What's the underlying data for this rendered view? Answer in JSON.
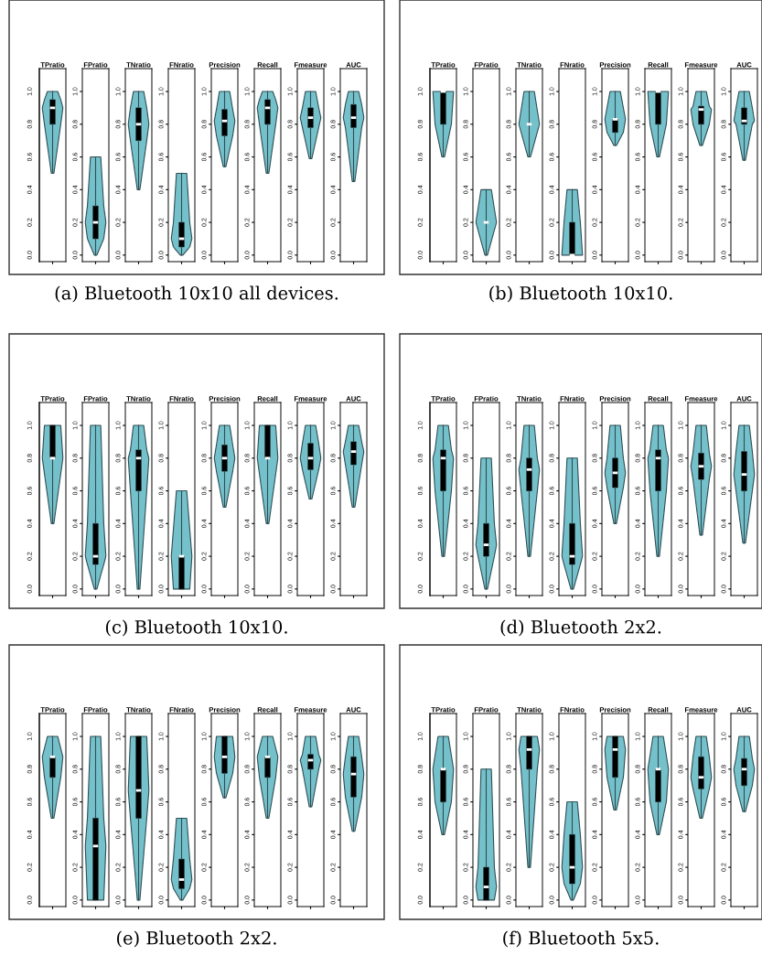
{
  "chart_data": [
    {
      "type": "box",
      "title": "(a) Bluetooth 10x10 all devices.",
      "categories": [
        "TPratio",
        "FPratio",
        "TNratio",
        "FNratio",
        "Precision",
        "Recall",
        "Fmeasure",
        "AUC"
      ],
      "color": "#000000",
      "ylim": [
        -0.04,
        1.14
      ],
      "yticks": [
        {
          "value": 0,
          "label": "0.0"
        },
        {
          "value": 0.2,
          "label": "0.2"
        },
        {
          "value": 0.4,
          "label": "0.4"
        },
        {
          "value": 0.6,
          "label": "0.6"
        },
        {
          "value": 0.8,
          "label": "0.8"
        },
        {
          "value": 1,
          "label": "1.0"
        }
      ],
      "boxes": [
        {
          "low": 0.5,
          "q1": 0.8,
          "median": 0.9,
          "q3": 0.95,
          "high": 1
        },
        {
          "low": 0,
          "q1": 0.1,
          "median": 0.2,
          "q3": 0.3,
          "high": 0.6
        },
        {
          "low": 0.4,
          "q1": 0.7,
          "median": 0.8,
          "q3": 0.9,
          "high": 1
        },
        {
          "low": 0,
          "q1": 0.05,
          "median": 0.1,
          "q3": 0.2,
          "high": 0.5
        },
        {
          "low": 0.54,
          "q1": 0.73,
          "median": 0.82,
          "q3": 0.89,
          "high": 1
        },
        {
          "low": 0.5,
          "q1": 0.8,
          "median": 0.9,
          "q3": 0.95,
          "high": 1
        },
        {
          "low": 0.59,
          "q1": 0.78,
          "median": 0.84,
          "q3": 0.9,
          "high": 1
        },
        {
          "low": 0.45,
          "q1": 0.78,
          "median": 0.84,
          "q3": 0.92,
          "high": 1
        }
      ]
    },
    {
      "type": "box",
      "title": "(b) Bluetooth 10x10.",
      "categories": [
        "TPratio",
        "FPratio",
        "TNratio",
        "FNratio",
        "Precision",
        "Recall",
        "Fmeasure",
        "AUC"
      ],
      "color": "#000000",
      "ylim": [
        -0.04,
        1.14
      ],
      "yticks": [
        {
          "value": 0,
          "label": "0.0"
        },
        {
          "value": 0.2,
          "label": "0.2"
        },
        {
          "value": 0.4,
          "label": "0.4"
        },
        {
          "value": 0.6,
          "label": "0.6"
        },
        {
          "value": 0.8,
          "label": "0.8"
        },
        {
          "value": 1,
          "label": "1.0"
        }
      ],
      "boxes": [
        {
          "low": 0.6,
          "q1": 0.8,
          "median": 1,
          "q3": 1,
          "high": 1
        },
        {
          "low": 0,
          "q1": 0.2,
          "median": 0.2,
          "q3": 0.2,
          "high": 0.4
        },
        {
          "low": 0.6,
          "q1": 0.8,
          "median": 0.8,
          "q3": 0.8,
          "high": 1
        },
        {
          "low": 0,
          "q1": 0,
          "median": 0,
          "q3": 0.2,
          "high": 0.4
        },
        {
          "low": 0.67,
          "q1": 0.75,
          "median": 0.83,
          "q3": 0.83,
          "high": 1
        },
        {
          "low": 0.6,
          "q1": 0.8,
          "median": 1,
          "q3": 1,
          "high": 1
        },
        {
          "low": 0.67,
          "q1": 0.8,
          "median": 0.89,
          "q3": 0.91,
          "high": 1
        },
        {
          "low": 0.58,
          "q1": 0.8,
          "median": 0.82,
          "q3": 0.9,
          "high": 1
        }
      ]
    },
    {
      "type": "box",
      "title": "(c) Bluetooth 10x10.",
      "categories": [
        "TPratio",
        "FPratio",
        "TNratio",
        "FNratio",
        "Precision",
        "Recall",
        "Fmeasure",
        "AUC"
      ],
      "color": "#000000",
      "ylim": [
        -0.04,
        1.14
      ],
      "yticks": [
        {
          "value": 0,
          "label": "0.0"
        },
        {
          "value": 0.2,
          "label": "0.2"
        },
        {
          "value": 0.4,
          "label": "0.4"
        },
        {
          "value": 0.6,
          "label": "0.6"
        },
        {
          "value": 0.8,
          "label": "0.8"
        },
        {
          "value": 1,
          "label": "1.0"
        }
      ],
      "boxes": [
        {
          "low": 0.4,
          "q1": 0.8,
          "median": 0.8,
          "q3": 1,
          "high": 1
        },
        {
          "low": 0,
          "q1": 0.15,
          "median": 0.2,
          "q3": 0.4,
          "high": 1
        },
        {
          "low": 0,
          "q1": 0.6,
          "median": 0.8,
          "q3": 0.85,
          "high": 1
        },
        {
          "low": 0,
          "q1": 0,
          "median": 0.2,
          "q3": 0.2,
          "high": 0.6
        },
        {
          "low": 0.5,
          "q1": 0.72,
          "median": 0.8,
          "q3": 0.88,
          "high": 1
        },
        {
          "low": 0.4,
          "q1": 0.8,
          "median": 0.8,
          "q3": 1,
          "high": 1
        },
        {
          "low": 0.55,
          "q1": 0.73,
          "median": 0.8,
          "q3": 0.89,
          "high": 1
        },
        {
          "low": 0.5,
          "q1": 0.76,
          "median": 0.84,
          "q3": 0.9,
          "high": 1
        }
      ]
    },
    {
      "type": "box",
      "title": "(d) Bluetooth 2x2.",
      "categories": [
        "TPratio",
        "FPratio",
        "TNratio",
        "FNratio",
        "Precision",
        "Recall",
        "Fmeasure",
        "AUC"
      ],
      "color": "#000000",
      "ylim": [
        -0.04,
        1.14
      ],
      "yticks": [
        {
          "value": 0,
          "label": "0.0"
        },
        {
          "value": 0.2,
          "label": "0.2"
        },
        {
          "value": 0.4,
          "label": "0.4"
        },
        {
          "value": 0.6,
          "label": "0.6"
        },
        {
          "value": 0.8,
          "label": "0.8"
        },
        {
          "value": 1,
          "label": "1.0"
        }
      ],
      "boxes": [
        {
          "low": 0.2,
          "q1": 0.6,
          "median": 0.8,
          "q3": 0.85,
          "high": 1
        },
        {
          "low": 0,
          "q1": 0.2,
          "median": 0.27,
          "q3": 0.4,
          "high": 0.8
        },
        {
          "low": 0.2,
          "q1": 0.6,
          "median": 0.73,
          "q3": 0.8,
          "high": 1
        },
        {
          "low": 0,
          "q1": 0.15,
          "median": 0.2,
          "q3": 0.4,
          "high": 0.8
        },
        {
          "low": 0.4,
          "q1": 0.62,
          "median": 0.71,
          "q3": 0.8,
          "high": 1
        },
        {
          "low": 0.2,
          "q1": 0.6,
          "median": 0.8,
          "q3": 0.85,
          "high": 1
        },
        {
          "low": 0.33,
          "q1": 0.67,
          "median": 0.75,
          "q3": 0.83,
          "high": 1
        },
        {
          "low": 0.28,
          "q1": 0.6,
          "median": 0.7,
          "q3": 0.84,
          "high": 1
        }
      ]
    },
    {
      "type": "box",
      "title": "(e) Bluetooth 2x2.",
      "categories": [
        "TPratio",
        "FPratio",
        "TNratio",
        "FNratio",
        "Precision",
        "Recall",
        "Fmeasure",
        "AUC"
      ],
      "color": "#000000",
      "ylim": [
        -0.04,
        1.14
      ],
      "yticks": [
        {
          "value": 0,
          "label": "0.0"
        },
        {
          "value": 0.2,
          "label": "0.2"
        },
        {
          "value": 0.4,
          "label": "0.4"
        },
        {
          "value": 0.6,
          "label": "0.6"
        },
        {
          "value": 0.8,
          "label": "0.8"
        },
        {
          "value": 1,
          "label": "1.0"
        }
      ],
      "boxes": [
        {
          "low": 0.5,
          "q1": 0.75,
          "median": 0.875,
          "q3": 0.875,
          "high": 1
        },
        {
          "low": 0,
          "q1": 0,
          "median": 0.33,
          "q3": 0.5,
          "high": 1
        },
        {
          "low": 0,
          "q1": 0.5,
          "median": 0.67,
          "q3": 1,
          "high": 1
        },
        {
          "low": 0,
          "q1": 0.07,
          "median": 0.125,
          "q3": 0.25,
          "high": 0.5
        },
        {
          "low": 0.625,
          "q1": 0.775,
          "median": 0.875,
          "q3": 1,
          "high": 1
        },
        {
          "low": 0.5,
          "q1": 0.75,
          "median": 0.875,
          "q3": 0.875,
          "high": 1
        },
        {
          "low": 0.57,
          "q1": 0.8,
          "median": 0.855,
          "q3": 0.89,
          "high": 1
        },
        {
          "low": 0.42,
          "q1": 0.63,
          "median": 0.77,
          "q3": 0.875,
          "high": 1
        }
      ]
    },
    {
      "type": "box",
      "title": "(f) Bluetooth 5x5.",
      "categories": [
        "TPratio",
        "FPratio",
        "TNratio",
        "FNratio",
        "Precision",
        "Recall",
        "Fmeasure",
        "AUC"
      ],
      "color": "#000000",
      "ylim": [
        -0.04,
        1.14
      ],
      "yticks": [
        {
          "value": 0,
          "label": "0.0"
        },
        {
          "value": 0.2,
          "label": "0.2"
        },
        {
          "value": 0.4,
          "label": "0.4"
        },
        {
          "value": 0.6,
          "label": "0.6"
        },
        {
          "value": 0.8,
          "label": "0.8"
        },
        {
          "value": 1,
          "label": "1.0"
        }
      ],
      "boxes": [
        {
          "low": 0.4,
          "q1": 0.6,
          "median": 0.8,
          "q3": 0.8,
          "high": 1
        },
        {
          "low": 0,
          "q1": 0,
          "median": 0.08,
          "q3": 0.2,
          "high": 0.8
        },
        {
          "low": 0.2,
          "q1": 0.8,
          "median": 0.92,
          "q3": 1,
          "high": 1
        },
        {
          "low": 0,
          "q1": 0.1,
          "median": 0.2,
          "q3": 0.4,
          "high": 0.6
        },
        {
          "low": 0.55,
          "q1": 0.75,
          "median": 0.92,
          "q3": 1,
          "high": 1
        },
        {
          "low": 0.4,
          "q1": 0.6,
          "median": 0.8,
          "q3": 0.8,
          "high": 1
        },
        {
          "low": 0.5,
          "q1": 0.68,
          "median": 0.75,
          "q3": 0.875,
          "high": 1
        },
        {
          "low": 0.54,
          "q1": 0.7,
          "median": 0.8,
          "q3": 0.865,
          "high": 1
        }
      ]
    }
  ]
}
